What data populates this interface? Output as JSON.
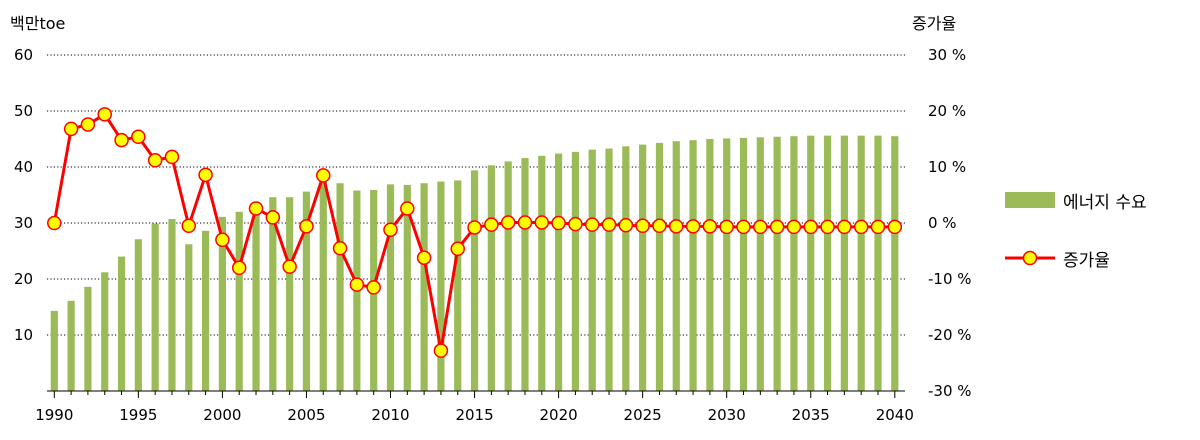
{
  "chart_data": {
    "type": "bar+line",
    "y_left_label": "백만toe",
    "y_right_label": "증가율",
    "y_left_ticks": [
      "60",
      "50",
      "40",
      "30",
      "20",
      "10"
    ],
    "y_right_ticks": [
      "30 %",
      "20 %",
      "10 %",
      "0 %",
      "-10 %",
      "-20 %",
      "-30 %"
    ],
    "ylim_left": [
      0,
      60
    ],
    "ylim_right": [
      -30,
      30
    ],
    "x_ticks": [
      "1990",
      "1995",
      "2000",
      "2005",
      "2010",
      "2015",
      "2020",
      "2025",
      "2030",
      "2035",
      "2040"
    ],
    "x": [
      1990,
      1991,
      1992,
      1993,
      1994,
      1995,
      1996,
      1997,
      1998,
      1999,
      2000,
      2001,
      2002,
      2003,
      2004,
      2005,
      2006,
      2007,
      2008,
      2009,
      2010,
      2011,
      2012,
      2013,
      2014,
      2015,
      2016,
      2017,
      2018,
      2019,
      2020,
      2021,
      2022,
      2023,
      2024,
      2025,
      2026,
      2027,
      2028,
      2029,
      2030,
      2031,
      2032,
      2033,
      2034,
      2035,
      2036,
      2037,
      2038,
      2039,
      2040
    ],
    "series": [
      {
        "name": "에너지 수요",
        "type": "bar",
        "axis": "left",
        "values": [
          14.3,
          16.1,
          18.6,
          21.2,
          24.0,
          27.1,
          29.9,
          30.7,
          26.2,
          28.6,
          31.1,
          32.0,
          33.4,
          34.6,
          34.6,
          35.6,
          38.3,
          37.1,
          35.8,
          35.9,
          36.9,
          36.8,
          37.1,
          37.4,
          37.6,
          39.4,
          40.3,
          41.0,
          41.6,
          42.0,
          42.4,
          42.7,
          43.1,
          43.3,
          43.7,
          44.0,
          44.3,
          44.6,
          44.8,
          45.0,
          45.1,
          45.2,
          45.3,
          45.4,
          45.5,
          45.6,
          45.6,
          45.6,
          45.6,
          45.6,
          45.5
        ]
      },
      {
        "name": "증가율",
        "type": "line",
        "axis": "right",
        "values": [
          0.0,
          16.8,
          17.6,
          19.4,
          14.8,
          15.4,
          11.2,
          11.8,
          -0.5,
          8.6,
          -3.0,
          -8.0,
          2.6,
          1.0,
          -7.8,
          -0.6,
          8.5,
          -4.5,
          -11.0,
          -11.5,
          -1.2,
          2.6,
          -6.2,
          -22.8,
          -4.6,
          -0.8,
          -0.3,
          0.1,
          0.1,
          0.1,
          0.0,
          -0.2,
          -0.3,
          -0.3,
          -0.4,
          -0.5,
          -0.5,
          -0.6,
          -0.6,
          -0.6,
          -0.7,
          -0.7,
          -0.7,
          -0.7,
          -0.7,
          -0.7,
          -0.7,
          -0.7,
          -0.7,
          -0.7,
          -0.7
        ]
      }
    ],
    "grid": "horizontal-dotted",
    "legend_position": "right",
    "colors": {
      "bar": "#9bbb59",
      "line": "#ff0000",
      "marker_fill": "#ffff00",
      "marker_stroke": "#ff0000"
    }
  }
}
